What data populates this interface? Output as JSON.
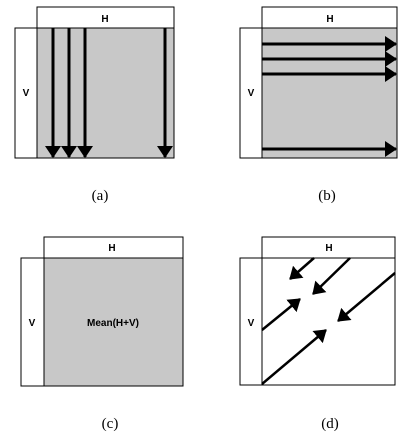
{
  "panels": [
    {
      "h_label": "H",
      "v_label": "V",
      "caption": "(a)"
    },
    {
      "h_label": "H",
      "v_label": "V",
      "caption": "(b)"
    },
    {
      "h_label": "H",
      "v_label": "V",
      "caption": "(c)",
      "center_label": "Mean(H+V)"
    },
    {
      "h_label": "H",
      "v_label": "V",
      "caption": "(d)"
    }
  ],
  "colors": {
    "fill": "#c8c8c8",
    "stroke": "#000000"
  }
}
